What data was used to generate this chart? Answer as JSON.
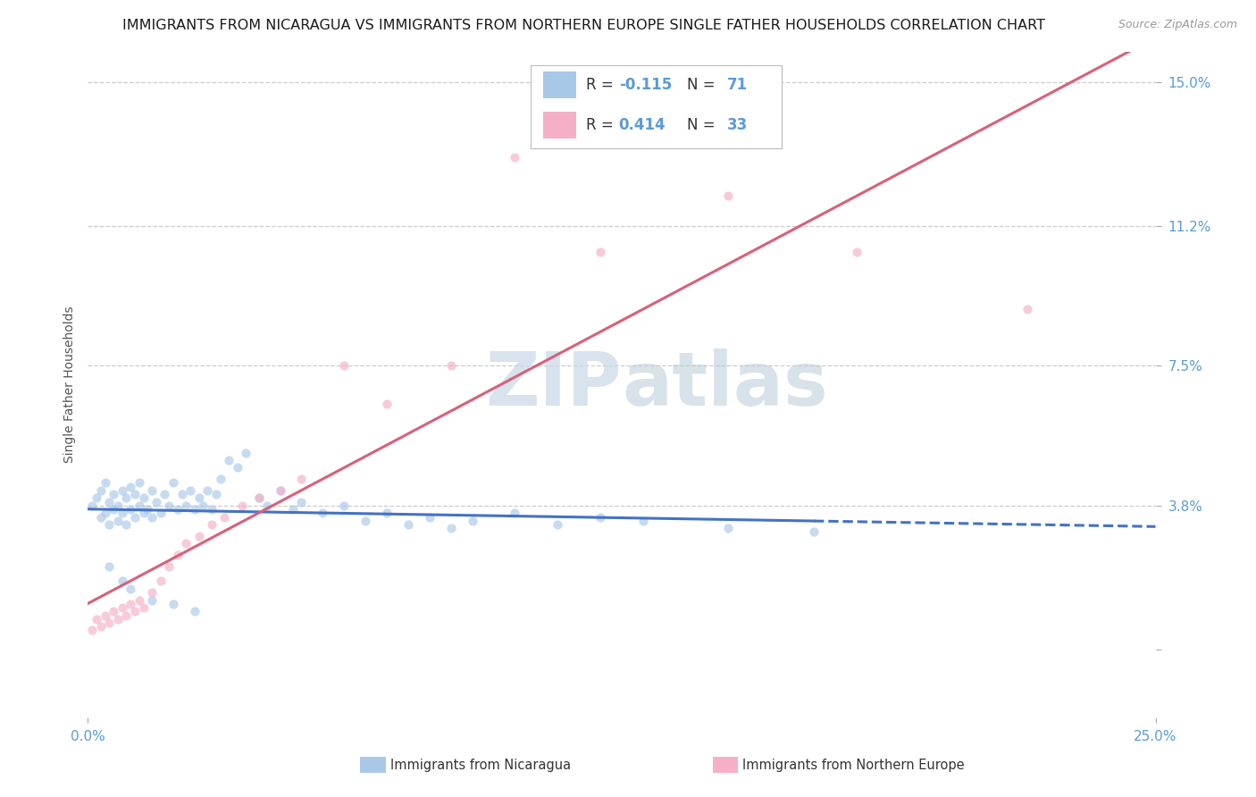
{
  "title": "IMMIGRANTS FROM NICARAGUA VS IMMIGRANTS FROM NORTHERN EUROPE SINGLE FATHER HOUSEHOLDS CORRELATION CHART",
  "source": "Source: ZipAtlas.com",
  "ylabel": "Single Father Households",
  "x_min": 0.0,
  "x_max": 0.25,
  "y_min": -0.018,
  "y_max": 0.158,
  "y_tick_vals": [
    0.0,
    0.038,
    0.075,
    0.112,
    0.15
  ],
  "y_tick_labels": [
    "",
    "3.8%",
    "7.5%",
    "11.2%",
    "15.0%"
  ],
  "x_tick_vals": [
    0.0,
    0.25
  ],
  "x_tick_labels": [
    "0.0%",
    "25.0%"
  ],
  "color_nicaragua": "#a8c8e8",
  "color_northern_europe": "#f5b0c8",
  "color_line_nicaragua": "#4472c4",
  "color_line_northern_europe": "#d9607a",
  "R_nicaragua": -0.115,
  "N_nicaragua": 71,
  "R_northern_europe": 0.414,
  "N_northern_europe": 33,
  "label_nicaragua": "Immigrants from Nicaragua",
  "label_northern_europe": "Immigrants from Northern Europe",
  "bg_color": "#ffffff",
  "grid_color": "#cccccc",
  "tick_color": "#5b9bd5",
  "title_fontsize": 11.5,
  "tick_fontsize": 11,
  "source_fontsize": 9,
  "scatter_alpha": 0.65,
  "scatter_size": 55,
  "watermark_zip_color": "#c8d8e8",
  "watermark_atlas_color": "#b8ccd8",
  "nicaragua_x": [
    0.001,
    0.002,
    0.003,
    0.003,
    0.004,
    0.004,
    0.005,
    0.005,
    0.006,
    0.006,
    0.007,
    0.007,
    0.008,
    0.008,
    0.009,
    0.009,
    0.01,
    0.01,
    0.011,
    0.011,
    0.012,
    0.012,
    0.013,
    0.013,
    0.014,
    0.015,
    0.015,
    0.016,
    0.017,
    0.018,
    0.019,
    0.02,
    0.021,
    0.022,
    0.023,
    0.024,
    0.025,
    0.026,
    0.027,
    0.028,
    0.029,
    0.03,
    0.031,
    0.033,
    0.035,
    0.037,
    0.04,
    0.042,
    0.045,
    0.048,
    0.05,
    0.055,
    0.06,
    0.065,
    0.07,
    0.075,
    0.08,
    0.085,
    0.09,
    0.1,
    0.11,
    0.12,
    0.13,
    0.15,
    0.17,
    0.005,
    0.008,
    0.01,
    0.015,
    0.02,
    0.025
  ],
  "nicaragua_y": [
    0.038,
    0.04,
    0.035,
    0.042,
    0.036,
    0.044,
    0.033,
    0.039,
    0.037,
    0.041,
    0.034,
    0.038,
    0.036,
    0.042,
    0.033,
    0.04,
    0.037,
    0.043,
    0.035,
    0.041,
    0.038,
    0.044,
    0.036,
    0.04,
    0.037,
    0.042,
    0.035,
    0.039,
    0.036,
    0.041,
    0.038,
    0.044,
    0.037,
    0.041,
    0.038,
    0.042,
    0.037,
    0.04,
    0.038,
    0.042,
    0.037,
    0.041,
    0.045,
    0.05,
    0.048,
    0.052,
    0.04,
    0.038,
    0.042,
    0.037,
    0.039,
    0.036,
    0.038,
    0.034,
    0.036,
    0.033,
    0.035,
    0.032,
    0.034,
    0.036,
    0.033,
    0.035,
    0.034,
    0.032,
    0.031,
    0.022,
    0.018,
    0.016,
    0.013,
    0.012,
    0.01
  ],
  "northern_europe_x": [
    0.001,
    0.002,
    0.003,
    0.004,
    0.005,
    0.006,
    0.007,
    0.008,
    0.009,
    0.01,
    0.011,
    0.012,
    0.013,
    0.015,
    0.017,
    0.019,
    0.021,
    0.023,
    0.026,
    0.029,
    0.032,
    0.036,
    0.04,
    0.045,
    0.05,
    0.06,
    0.07,
    0.085,
    0.1,
    0.12,
    0.15,
    0.18,
    0.22
  ],
  "northern_europe_y": [
    0.005,
    0.008,
    0.006,
    0.009,
    0.007,
    0.01,
    0.008,
    0.011,
    0.009,
    0.012,
    0.01,
    0.013,
    0.011,
    0.015,
    0.018,
    0.022,
    0.025,
    0.028,
    0.03,
    0.033,
    0.035,
    0.038,
    0.04,
    0.042,
    0.045,
    0.075,
    0.065,
    0.075,
    0.13,
    0.105,
    0.12,
    0.105,
    0.09
  ]
}
